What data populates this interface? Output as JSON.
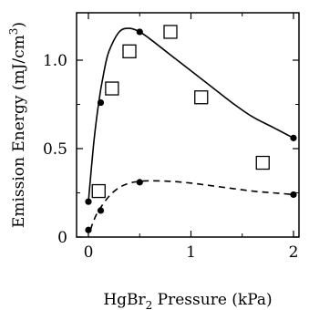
{
  "chart_data": {
    "type": "scatter",
    "xlabel": {
      "prefix": "HgBr",
      "subscript": "2",
      "suffix": " Pressure (kPa)"
    },
    "ylabel": {
      "prefix": "Emission Energy (mJ/cm",
      "superscript": "3",
      "suffix": ")"
    },
    "xlim": [
      -0.05,
      2.1
    ],
    "ylim": [
      0,
      1.25
    ],
    "x_ticks": [
      0,
      1,
      2
    ],
    "x_tick_labels": [
      "0",
      "1",
      "2"
    ],
    "y_ticks": [
      0,
      0.5,
      1.0
    ],
    "y_tick_labels": [
      "0",
      "0.5",
      "1.0"
    ],
    "x_minor_ticks": [
      0.5,
      1.5
    ],
    "y_minor_ticks": [
      0.25,
      0.75
    ],
    "grid": false,
    "legend": "none",
    "series": [
      {
        "marker": "open-square",
        "style": "markers",
        "x": [
          0.1,
          0.23,
          0.4,
          0.8,
          1.1,
          1.7
        ],
        "y": [
          0.26,
          0.84,
          1.05,
          1.16,
          0.79,
          0.42
        ]
      },
      {
        "marker": "filled-circle",
        "style": "solid-curve",
        "x": [
          0.0,
          0.12,
          0.5,
          2.0
        ],
        "y": [
          0.2,
          0.76,
          1.16,
          0.56
        ],
        "curve_x": [
          0.0,
          0.05,
          0.1,
          0.15,
          0.2,
          0.3,
          0.4,
          0.5,
          0.6,
          0.8,
          1.0,
          1.2,
          1.4,
          1.6,
          1.8,
          2.0
        ],
        "curve_y": [
          0.2,
          0.52,
          0.76,
          0.93,
          1.05,
          1.16,
          1.18,
          1.16,
          1.12,
          1.03,
          0.94,
          0.85,
          0.76,
          0.68,
          0.62,
          0.56
        ]
      },
      {
        "marker": "filled-circle",
        "style": "dashed-curve",
        "x": [
          0.0,
          0.12,
          0.5,
          2.0
        ],
        "y": [
          0.04,
          0.15,
          0.31,
          0.24
        ],
        "curve_x": [
          0.02,
          0.05,
          0.1,
          0.2,
          0.3,
          0.4,
          0.5,
          0.6,
          0.8,
          1.0,
          1.2,
          1.4,
          1.6,
          1.8,
          2.0
        ],
        "curve_y": [
          0.04,
          0.09,
          0.15,
          0.23,
          0.28,
          0.305,
          0.315,
          0.318,
          0.315,
          0.305,
          0.29,
          0.275,
          0.26,
          0.25,
          0.24
        ]
      }
    ],
    "colors": {
      "line": "#000000",
      "background": "#ffffff"
    }
  }
}
